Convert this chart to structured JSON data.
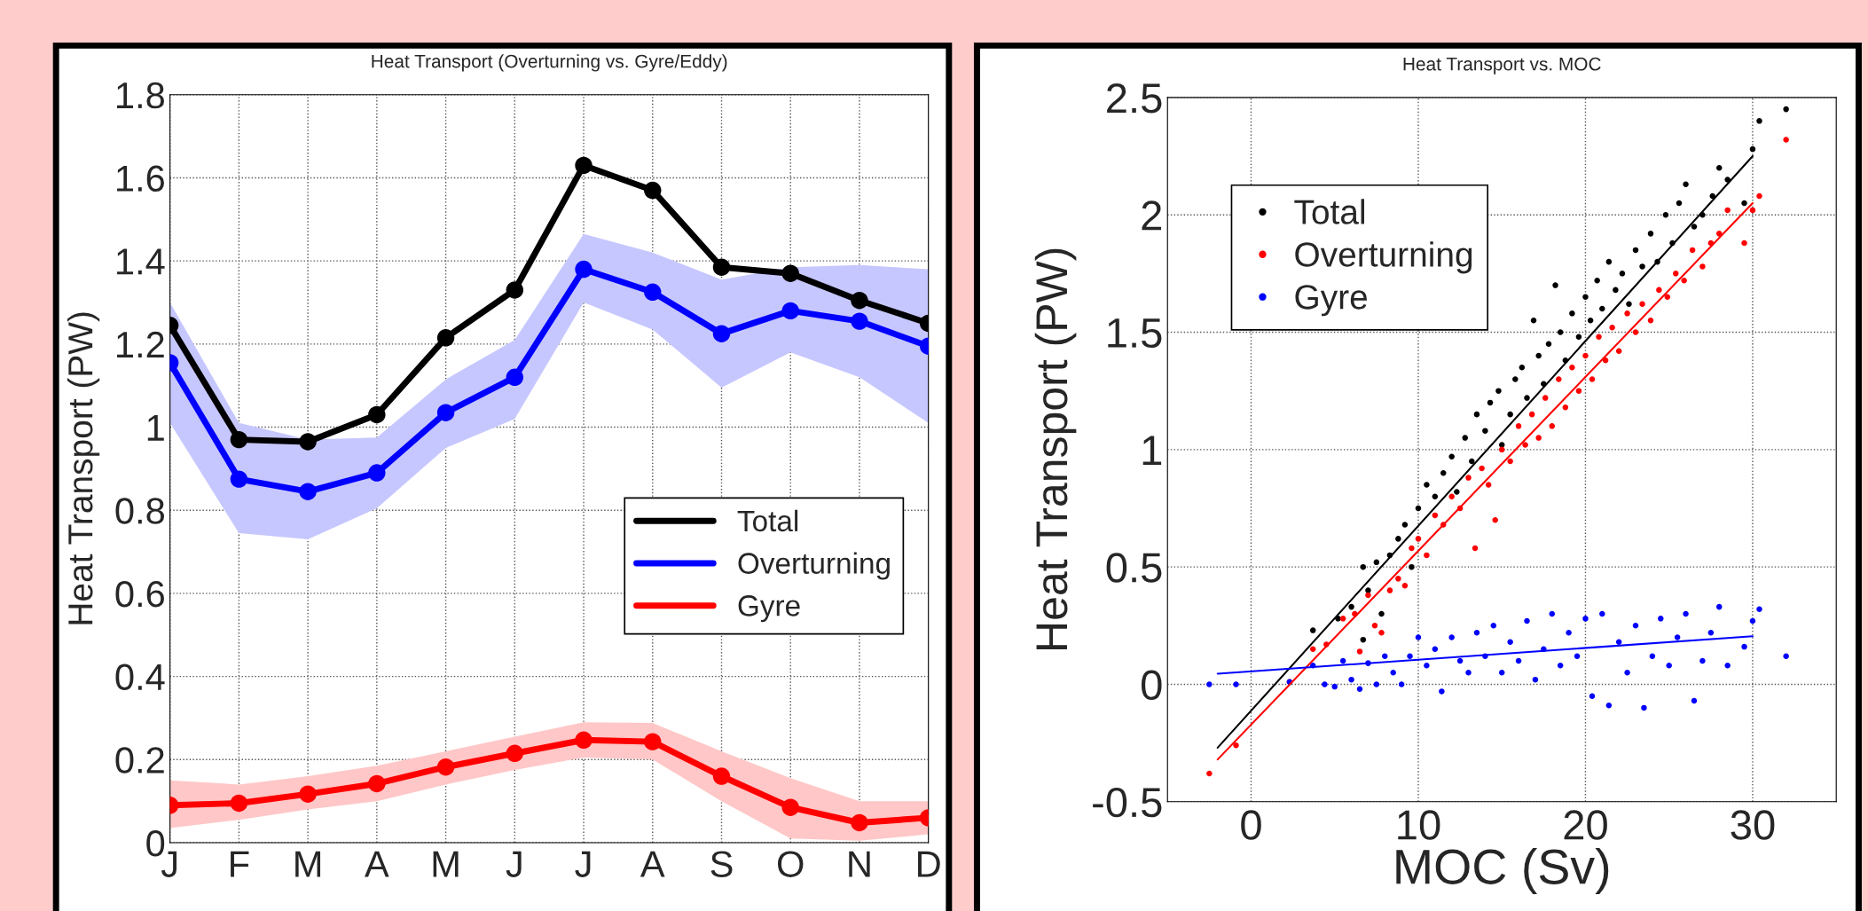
{
  "chart_data": [
    {
      "type": "line",
      "title": "Heat Transport (Overturning vs. Gyre/Eddy)",
      "ylabel": "Heat Transport (PW)",
      "categories": [
        "J",
        "F",
        "M",
        "A",
        "M",
        "J",
        "J",
        "A",
        "S",
        "O",
        "N",
        "D"
      ],
      "ylim": [
        0,
        1.8
      ],
      "yticks": [
        0,
        0.2,
        0.4,
        0.6,
        0.8,
        1,
        1.2,
        1.4,
        1.6,
        1.8
      ],
      "grid": true,
      "legend": "right",
      "marker": "circle",
      "line_style": "solid",
      "series": [
        {
          "name": "Total",
          "color": "#000000",
          "values": [
            1.245,
            0.97,
            0.965,
            1.03,
            1.215,
            1.33,
            1.63,
            1.57,
            1.385,
            1.37,
            1.305,
            1.25
          ]
        },
        {
          "name": "Overturning",
          "color": "#0000ff",
          "values": [
            1.155,
            0.875,
            0.845,
            0.89,
            1.035,
            1.12,
            1.38,
            1.325,
            1.225,
            1.28,
            1.255,
            1.195
          ],
          "lower": [
            1.01,
            0.745,
            0.73,
            0.805,
            0.95,
            1.02,
            1.3,
            1.235,
            1.095,
            1.18,
            1.12,
            1.01
          ],
          "upper": [
            1.3,
            1.01,
            0.97,
            0.975,
            1.115,
            1.21,
            1.465,
            1.42,
            1.355,
            1.385,
            1.39,
            1.38
          ]
        },
        {
          "name": "Gyre",
          "color": "#ff0000",
          "values": [
            0.09,
            0.095,
            0.117,
            0.142,
            0.182,
            0.215,
            0.247,
            0.243,
            0.16,
            0.085,
            0.048,
            0.06
          ],
          "lower": [
            0.035,
            0.055,
            0.08,
            0.1,
            0.14,
            0.175,
            0.205,
            0.2,
            0.1,
            0.01,
            0.005,
            0.02
          ],
          "upper": [
            0.15,
            0.14,
            0.16,
            0.185,
            0.22,
            0.255,
            0.29,
            0.288,
            0.22,
            0.155,
            0.1,
            0.1
          ]
        }
      ]
    },
    {
      "type": "scatter",
      "title": "Heat Transport vs. MOC",
      "xlabel": "MOC (Sv)",
      "ylabel": "Heat Transport (PW)",
      "xlim": [
        -5,
        35
      ],
      "xticks": [
        0,
        10,
        20,
        30
      ],
      "ylim": [
        -0.5,
        2.5
      ],
      "yticks": [
        -0.5,
        0,
        0.5,
        1,
        1.5,
        2,
        2.5
      ],
      "grid": true,
      "legend": "top left",
      "marker": "circle",
      "series": [
        {
          "name": "Total",
          "color": "#000000",
          "x": [
            3.7,
            5.2,
            6.0,
            6.7,
            6.7,
            7.0,
            7.5,
            7.8,
            8.3,
            8.8,
            9.2,
            9.6,
            10.0,
            10.5,
            11.0,
            11.5,
            12.0,
            12.3,
            12.8,
            13.2,
            13.5,
            14.0,
            14.3,
            14.8,
            15.0,
            15.5,
            15.8,
            16.2,
            16.5,
            16.9,
            17.2,
            17.5,
            17.8,
            18.2,
            18.5,
            18.8,
            19.2,
            19.6,
            20.0,
            20.3,
            20.7,
            21.0,
            21.4,
            21.8,
            22.2,
            22.6,
            23.0,
            23.4,
            23.9,
            24.3,
            24.8,
            25.2,
            25.6,
            26.0,
            26.5,
            27.0,
            27.6,
            28.0,
            28.5,
            29.5,
            30.0,
            30.4,
            32.0
          ],
          "values": [
            0.23,
            0.28,
            0.33,
            0.5,
            0.19,
            0.4,
            0.52,
            0.3,
            0.55,
            0.62,
            0.68,
            0.5,
            0.75,
            0.85,
            0.8,
            0.9,
            0.97,
            0.82,
            1.05,
            0.95,
            1.15,
            1.08,
            1.2,
            1.25,
            1.02,
            1.15,
            1.3,
            1.35,
            1.22,
            1.55,
            1.4,
            1.28,
            1.45,
            1.7,
            1.5,
            1.38,
            1.58,
            1.48,
            1.65,
            1.55,
            1.72,
            1.6,
            1.8,
            1.68,
            1.75,
            1.62,
            1.85,
            1.78,
            1.92,
            1.8,
            2.0,
            1.88,
            2.05,
            2.13,
            1.95,
            2.0,
            2.08,
            2.2,
            2.15,
            2.05,
            2.28,
            2.4,
            2.45
          ]
        },
        {
          "name": "Overturning",
          "color": "#ff0000",
          "x": [
            -2.5,
            -0.9,
            2.3,
            3.7,
            4.5,
            5.5,
            6.2,
            6.5,
            7.0,
            7.4,
            7.8,
            8.3,
            8.8,
            9.2,
            9.6,
            10.0,
            10.5,
            11.0,
            11.5,
            12.0,
            12.5,
            13.0,
            13.4,
            13.8,
            14.2,
            14.6,
            15.0,
            15.5,
            16.0,
            16.4,
            16.8,
            17.2,
            17.6,
            18.0,
            18.4,
            18.8,
            19.2,
            19.6,
            20.0,
            20.4,
            20.8,
            21.2,
            21.6,
            22.0,
            22.5,
            23.0,
            23.4,
            23.9,
            24.4,
            24.9,
            25.4,
            25.9,
            26.4,
            27.0,
            27.5,
            28.0,
            28.5,
            29.5,
            30.0,
            30.4,
            32.0
          ],
          "values": [
            -0.38,
            -0.26,
            0.01,
            0.15,
            0.17,
            0.28,
            0.3,
            0.14,
            0.38,
            0.25,
            0.22,
            0.4,
            0.45,
            0.42,
            0.58,
            0.62,
            0.55,
            0.72,
            0.68,
            0.8,
            0.75,
            0.88,
            0.58,
            0.92,
            0.85,
            0.7,
            1.0,
            0.95,
            1.1,
            1.02,
            1.15,
            1.05,
            1.22,
            1.1,
            1.3,
            1.18,
            1.35,
            1.25,
            1.4,
            1.3,
            1.48,
            1.38,
            1.52,
            1.42,
            1.58,
            1.5,
            1.62,
            1.55,
            1.68,
            1.65,
            1.75,
            1.72,
            1.85,
            1.78,
            1.88,
            1.92,
            2.02,
            1.88,
            2.02,
            2.08,
            2.32
          ]
        },
        {
          "name": "Gyre",
          "color": "#0000ff",
          "x": [
            -2.5,
            -0.9,
            2.3,
            3.7,
            4.4,
            5.0,
            5.5,
            6.0,
            6.5,
            7.0,
            7.5,
            8.0,
            8.5,
            9.0,
            9.5,
            10.0,
            10.5,
            11.0,
            11.4,
            12.0,
            12.5,
            13.0,
            13.5,
            14.0,
            14.5,
            15.0,
            15.5,
            16.0,
            16.5,
            17.0,
            17.5,
            18.0,
            18.5,
            19.0,
            19.5,
            20.0,
            20.4,
            21.0,
            21.4,
            22.0,
            22.5,
            23.0,
            23.5,
            24.0,
            24.5,
            25.0,
            25.5,
            26.0,
            26.5,
            27.0,
            27.5,
            28.0,
            28.5,
            29.5,
            30.0,
            30.4,
            32.0
          ],
          "values": [
            0.0,
            0.0,
            0.01,
            0.08,
            0.0,
            -0.01,
            0.1,
            0.02,
            -0.02,
            0.09,
            0.0,
            0.12,
            0.05,
            0.0,
            0.12,
            0.2,
            0.08,
            0.15,
            -0.03,
            0.2,
            0.1,
            0.05,
            0.22,
            0.12,
            0.25,
            0.05,
            0.18,
            0.1,
            0.27,
            0.02,
            0.15,
            0.3,
            0.08,
            0.22,
            0.12,
            0.28,
            -0.05,
            0.3,
            -0.09,
            0.18,
            0.05,
            0.25,
            -0.1,
            0.12,
            0.28,
            0.08,
            0.2,
            0.3,
            -0.07,
            0.1,
            0.22,
            0.33,
            0.08,
            0.16,
            0.27,
            0.32,
            0.12
          ]
        },
        {
          "type": "line",
          "marker": "none",
          "color": "#000000",
          "x": [
            -2,
            30
          ],
          "values": [
            -0.27,
            2.25
          ]
        },
        {
          "type": "line",
          "marker": "none",
          "color": "#ff0000",
          "x": [
            -2,
            30
          ],
          "values": [
            -0.32,
            2.05
          ]
        },
        {
          "type": "line",
          "marker": "none",
          "color": "#0000ff",
          "x": [
            -2,
            30
          ],
          "values": [
            0.045,
            0.205
          ]
        }
      ]
    }
  ]
}
